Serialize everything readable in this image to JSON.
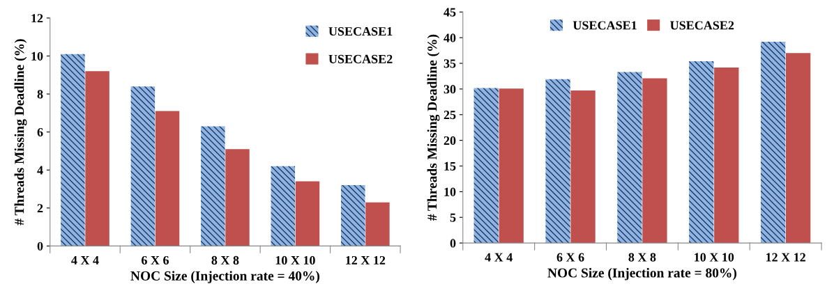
{
  "chart_data": [
    {
      "type": "bar",
      "xlabel": "NOC Size (Injection rate = 40%)",
      "ylabel": "# Threads Missing Deadline (%)",
      "categories": [
        "4 X 4",
        "6 X 6",
        "8 X 8",
        "10 X 10",
        "12 X 12"
      ],
      "series": [
        {
          "name": "USECASE1",
          "color": "#8db4e2",
          "values": [
            10.1,
            8.4,
            6.3,
            4.2,
            3.2
          ]
        },
        {
          "name": "USECASE2",
          "color": "#c0504d",
          "values": [
            9.2,
            7.1,
            5.1,
            3.4,
            2.3
          ]
        }
      ],
      "ylim": [
        0,
        12
      ],
      "yticks": [
        0,
        2,
        4,
        6,
        8,
        10,
        12
      ],
      "legend": "top right",
      "grid": false
    },
    {
      "type": "bar",
      "xlabel": "NOC Size (Injection rate = 80%)",
      "ylabel": "# Threads Missing Deadline (%)",
      "categories": [
        "4 X 4",
        "6 X 6",
        "8 X 8",
        "10 X 10",
        "12 X 12"
      ],
      "series": [
        {
          "name": "USECASE1",
          "color": "#8db4e2",
          "values": [
            30.2,
            31.9,
            33.3,
            35.4,
            39.2
          ]
        },
        {
          "name": "USECASE2",
          "color": "#c0504d",
          "values": [
            30.1,
            29.7,
            32.1,
            34.2,
            37.0
          ]
        }
      ],
      "ylim": [
        0,
        45
      ],
      "yticks": [
        0,
        5,
        10,
        15,
        20,
        25,
        30,
        35,
        40,
        45
      ],
      "legend": "top",
      "grid": false
    }
  ]
}
